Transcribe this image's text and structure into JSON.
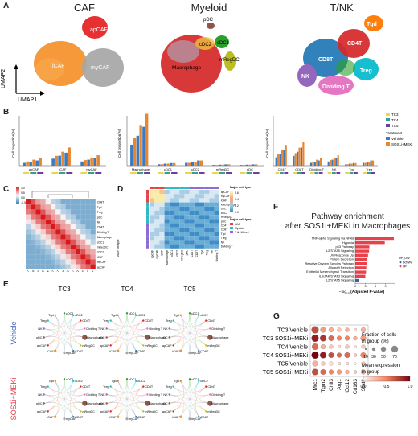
{
  "panels": {
    "A": "A",
    "B": "B",
    "C": "C",
    "D": "D",
    "E": "E",
    "F": "F",
    "G": "G"
  },
  "panelA": {
    "umap_titles": [
      "CAF",
      "Myeloid",
      "T/NK"
    ],
    "axis_labels": {
      "y": "UMAP2",
      "x": "UMAP1"
    },
    "caf_clusters": [
      "apCAF",
      "iCAF",
      "myCAF"
    ],
    "myeloid_clusters": [
      "pDC",
      "cDC2",
      "cDC1",
      "Macrophage",
      "mRegDC"
    ],
    "tnk_clusters": [
      "Tgd",
      "CD4T",
      "CD8T",
      "Treg",
      "NK",
      "Dividing T"
    ],
    "colors": {
      "apCAF": "#e41a1c",
      "iCAF": "#f5902a",
      "myCAF": "#a6a6a6",
      "macrophage": "#d62728",
      "cdc1": "#2ca02c",
      "pdc": "#8c564b",
      "mregdc": "#bcbd22",
      "tgd": "#ff7f0e",
      "cd4t": "#d62728",
      "cd8t": "#1f77b4",
      "treg": "#17becf",
      "nk": "#9467bd",
      "dividing": "#e377c2"
    }
  },
  "panelB": {
    "ylabel": "Cell proportion(%)",
    "legend_tc": [
      "TC3",
      "TC4",
      "TC5"
    ],
    "tc_colors": [
      "#e6d94f",
      "#3a9d8f",
      "#6b3fa0"
    ],
    "treatment_title": "Treatment",
    "treatment": [
      "Vehicle",
      "SOS1i+MEKi"
    ],
    "treatment_colors": [
      "#3a7bbf",
      "#e8852f"
    ],
    "chart_data": [
      {
        "type": "bar",
        "categories": [
          "apCAF",
          "iCAF",
          "myCAF"
        ],
        "series": [
          {
            "name": "Vehicle",
            "values": [
              2,
              5,
              3
            ]
          },
          {
            "name": "SOS1i+MEKi",
            "values": [
              3,
              7,
              4
            ]
          }
        ]
      },
      {
        "type": "bar",
        "categories": [
          "Macrophage",
          "cDC1",
          "cDC2",
          "mRegDC",
          "pDC"
        ],
        "series": [
          {
            "name": "Vehicle",
            "values": [
              15,
              1,
              2,
              0.5,
              0.5
            ]
          },
          {
            "name": "SOS1i+MEKi",
            "values": [
              20,
              1,
              2,
              0.5,
              0.5
            ]
          }
        ]
      },
      {
        "type": "bar",
        "categories": [
          "CD4T",
          "CD8T",
          "Dividing T",
          "NK",
          "Tgd",
          "Treg"
        ],
        "series": [
          {
            "name": "Vehicle",
            "values": [
              6,
              7,
              2,
              3,
              1,
              2
            ]
          },
          {
            "name": "SOS1i+MEKi",
            "values": [
              8,
              9,
              3,
              4,
              1,
              2
            ]
          }
        ]
      }
    ]
  },
  "panelC": {
    "colorbar_ticks": [
      "1.0",
      "0.5",
      "0.0",
      "-0.5"
    ],
    "labels": [
      "CD8T",
      "Tgd",
      "Treg",
      "pDC",
      "NK",
      "CD4T",
      "Dividing T",
      "Macrophage",
      "cDC1",
      "mRegDC",
      "cDC2",
      "iCAF",
      "myCAF",
      "apCAF"
    ]
  },
  "panelD": {
    "rows": [
      "apCAF",
      "myCAF",
      "iCAF",
      "Macrophage",
      "cDC1",
      "cDC2",
      "mRegDC",
      "pDC",
      "CD4T",
      "CD8T",
      "Tgd",
      "Treg",
      "NK",
      "Dividing T"
    ],
    "cols": [
      "apCAF",
      "myCAF",
      "iCAF",
      "Macrophage",
      "cDC1",
      "cDC2",
      "mRegDC",
      "pDC",
      "CD4T",
      "CD8T",
      "Tgd",
      "Treg",
      "NK",
      "Dividing T"
    ],
    "legend_title": "Major cell type",
    "legend_items": [
      "CAF",
      "Myeloid",
      "T & NK cell"
    ],
    "legend_colors": [
      "#e8414a",
      "#2eb8c8",
      "#8e6bd4"
    ],
    "colorbar_ticks": [
      "0.6",
      "0.4",
      "0.2",
      "0.0"
    ],
    "corner_label": "Major cell type"
  },
  "panelE": {
    "cols": [
      "TC3",
      "TC4",
      "TC5"
    ],
    "rows": [
      "Vehicle",
      "SOS1i+MEKi"
    ],
    "row_colors": [
      "#3a5fb0",
      "#e8414a"
    ],
    "nodes": [
      "cDC1",
      "cDC2",
      "CD4T",
      "Dividing T",
      "Macrophage",
      "mRegDC",
      "CD8T",
      "myCAF",
      "iCAF",
      "apCAF",
      "pDC",
      "NK",
      "Treg",
      "Tgd"
    ]
  },
  "panelF": {
    "title_line1": "Pathway enrichment",
    "title_line2": "after SOS1i+MEKi in Macrophages",
    "xlabel_prefix": "−log",
    "xlabel_sub": "10",
    "xlabel_suffix": " (Adjusted P-value)",
    "legend_title": "UP_DW",
    "legend_items": [
      "DOWN",
      "UP"
    ],
    "chart_data": {
      "type": "bar",
      "categories": [
        "TNF-alpha Signaling via NFkB",
        "Hypoxia",
        "p53 Pathway",
        "IL2/STAT5 Signaling",
        "UV Response Up",
        "Protein Secretion",
        "Reactive Oxygen Species Pathway",
        "Allograft Rejection",
        "Epithelial Mesenchymal Transition",
        "IL6/JAK/STAT3 Signaling",
        "IL2/STAT5 Signaling"
      ],
      "values": [
        11.5,
        8.8,
        4.2,
        4.1,
        3.8,
        3.6,
        3.5,
        3.3,
        3.2,
        3.0,
        1.2
      ],
      "direction": [
        "UP",
        "UP",
        "UP",
        "UP",
        "UP",
        "UP",
        "UP",
        "UP",
        "UP",
        "UP",
        "DOWN"
      ],
      "xticks": [
        "0",
        "3",
        "6",
        "9"
      ],
      "xlim": [
        0,
        12
      ],
      "colors": {
        "UP": "#e8414a",
        "DOWN": "#3a5fb0"
      }
    }
  },
  "panelG": {
    "rows": [
      "TC3 Vehicle",
      "TC3 SOS1i+MEKi",
      "TC4 Vehicle",
      "TC4 SOS1i+MEKi",
      "TC5 Vehicle",
      "TC5 SOS1i+MEKi"
    ],
    "cols": [
      "Mrc1",
      "Tgm2",
      "Chil3",
      "Arg1",
      "Ccl12",
      "Cd163",
      "Stat6"
    ],
    "size_legend_title_1": "Fraction of cells",
    "size_legend_title_2": "in group (%)",
    "size_ticks": [
      "10",
      "30",
      "50",
      "70"
    ],
    "color_legend_title_1": "Mean expression",
    "color_legend_title_2": "in group",
    "color_ticks": [
      "0.0",
      "0.5",
      "1.0"
    ],
    "chart_data": {
      "type": "dotplot",
      "fraction": [
        [
          70,
          50,
          40,
          30,
          30,
          20,
          40
        ],
        [
          70,
          60,
          50,
          40,
          40,
          30,
          50
        ],
        [
          60,
          40,
          30,
          20,
          30,
          10,
          30
        ],
        [
          70,
          60,
          50,
          40,
          50,
          20,
          50
        ],
        [
          50,
          30,
          30,
          20,
          20,
          10,
          30
        ],
        [
          60,
          50,
          40,
          40,
          30,
          20,
          40
        ]
      ],
      "expression": [
        [
          0.7,
          0.4,
          0.3,
          0.2,
          0.3,
          0.1,
          0.3
        ],
        [
          0.9,
          0.8,
          0.6,
          0.5,
          0.5,
          0.3,
          0.4
        ],
        [
          0.6,
          0.3,
          0.2,
          0.1,
          0.2,
          0.1,
          0.2
        ],
        [
          1.0,
          0.9,
          0.7,
          0.6,
          0.6,
          0.2,
          0.5
        ],
        [
          0.3,
          0.2,
          0.1,
          0.1,
          0.1,
          0.0,
          0.2
        ],
        [
          0.7,
          0.6,
          0.5,
          0.4,
          0.3,
          0.2,
          0.3
        ]
      ]
    }
  }
}
